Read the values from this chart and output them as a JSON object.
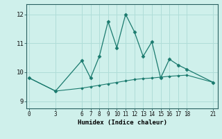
{
  "xlabel": "Humidex (Indice chaleur)",
  "bg_color": "#cff0eb",
  "line_color": "#1a7a6e",
  "grid_color": "#b0ddd8",
  "line1_x": [
    0,
    3,
    6,
    7,
    8,
    9,
    10,
    11,
    12,
    13,
    14,
    15,
    16,
    17,
    18,
    21
  ],
  "line1_y": [
    9.8,
    9.35,
    10.4,
    9.8,
    10.55,
    11.75,
    10.85,
    12.0,
    11.4,
    10.55,
    11.05,
    9.8,
    10.45,
    10.25,
    10.1,
    9.65
  ],
  "line2_x": [
    0,
    3,
    6,
    7,
    8,
    9,
    10,
    11,
    12,
    13,
    14,
    15,
    16,
    17,
    18,
    21
  ],
  "line2_y": [
    9.8,
    9.35,
    9.45,
    9.5,
    9.55,
    9.6,
    9.65,
    9.7,
    9.75,
    9.78,
    9.8,
    9.83,
    9.86,
    9.88,
    9.9,
    9.65
  ],
  "yticks": [
    9,
    10,
    11,
    12
  ],
  "xticks": [
    0,
    3,
    6,
    7,
    8,
    9,
    10,
    11,
    12,
    13,
    14,
    15,
    16,
    17,
    18,
    21
  ],
  "ylim": [
    8.75,
    12.35
  ],
  "xlim": [
    -0.3,
    21.5
  ]
}
